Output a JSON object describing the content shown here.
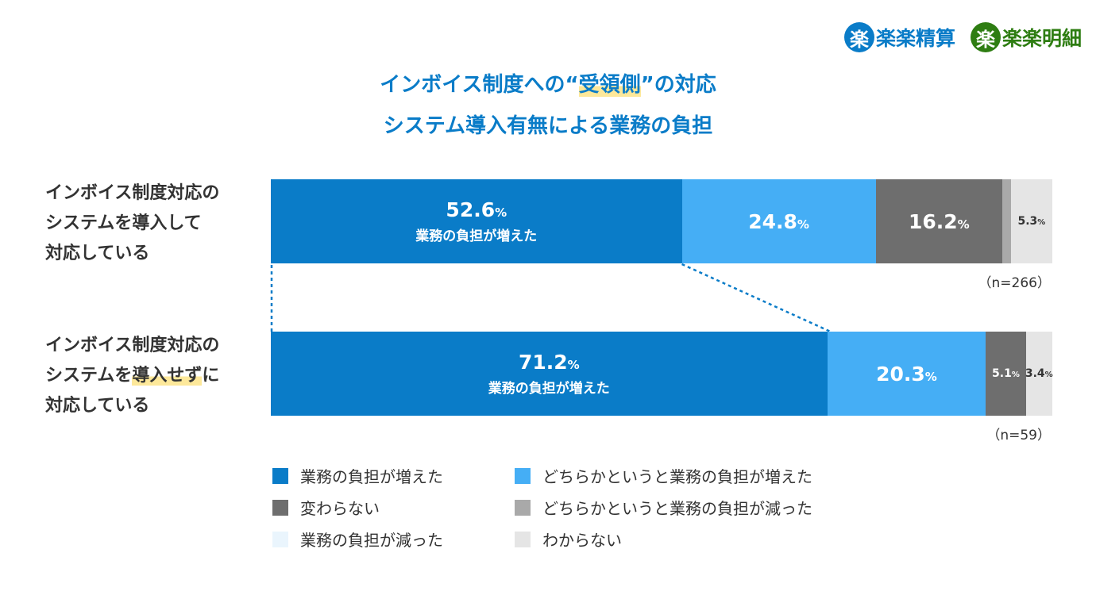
{
  "logos": [
    {
      "mark": "楽",
      "name": "楽楽精算",
      "color": "#0a7cc8"
    },
    {
      "mark": "楽",
      "name": "楽楽明細",
      "color": "#2e7d12"
    }
  ],
  "title": {
    "line1_pre": "インボイス制度への“",
    "line1_hl": "受領側",
    "line1_post": "”の対応",
    "line2": "システム導入有無による業務の負担"
  },
  "colors": {
    "increased": "#0a7cc8",
    "somewhat_increased": "#45aef5",
    "unchanged": "#6e6e6e",
    "somewhat_decreased": "#a9a9a9",
    "decreased": "#eaf5fd",
    "unknown": "#e5e5e5"
  },
  "chart_data": {
    "type": "bar",
    "orientation": "horizontal-stacked-100",
    "categories": [
      "インボイス制度対応のシステムを導入して対応している",
      "インボイス制度対応のシステムを導入せずに対応している"
    ],
    "category_labels": [
      {
        "lines": [
          "インボイス制度対応の",
          "システムを導入して",
          "対応している"
        ]
      },
      {
        "lines": [
          "インボイス制度対応の",
          "システムを",
          "導入せず",
          "に",
          "対応している"
        ]
      }
    ],
    "n_labels": [
      "（n=266）",
      "（n=59）"
    ],
    "series": [
      {
        "name": "業務の負担が増えた",
        "key": "increased",
        "values": [
          52.6,
          71.2
        ]
      },
      {
        "name": "どちらかというと業務の負担が増えた",
        "key": "somewhat_increased",
        "values": [
          24.8,
          20.3
        ]
      },
      {
        "name": "変わらない",
        "key": "unchanged",
        "values": [
          16.2,
          5.1
        ]
      },
      {
        "name": "どちらかというと業務の負担が減った",
        "key": "somewhat_decreased",
        "values": [
          1.1,
          0
        ]
      },
      {
        "name": "業務の負担が減った",
        "key": "decreased",
        "values": [
          0,
          0
        ]
      },
      {
        "name": "わからない",
        "key": "unknown",
        "values": [
          5.3,
          3.4
        ]
      }
    ],
    "data_labels": [
      [
        {
          "value": "52.6",
          "unit": "%",
          "sub": "業務の負担が増えた"
        },
        {
          "value": "24.8",
          "unit": "%"
        },
        {
          "value": "16.2",
          "unit": "%"
        },
        null,
        null,
        {
          "value": "5.3",
          "unit": "%"
        }
      ],
      [
        {
          "value": "71.2",
          "unit": "%",
          "sub": "業務の負担が増えた"
        },
        {
          "value": "20.3",
          "unit": "%"
        },
        {
          "value": "5.1",
          "unit": "%"
        },
        null,
        null,
        {
          "value": "3.4",
          "unit": "%"
        }
      ]
    ],
    "legend_order": [
      "業務の負担が増えた",
      "どちらかというと業務の負担が増えた",
      "変わらない",
      "どちらかというと業務の負担が減った",
      "業務の負担が減った",
      "わからない"
    ],
    "legend_placement": "bottom",
    "xlim": [
      0,
      100
    ],
    "grid": false
  }
}
